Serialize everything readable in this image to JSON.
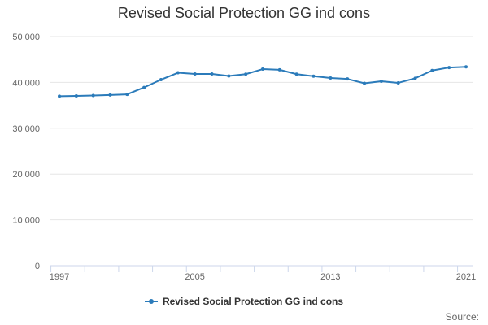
{
  "colors": {
    "series": "#2b7bba",
    "grid": "#e6e6e6",
    "axis": "#ccd6eb",
    "tick_text": "#666666",
    "title_text": "#333333"
  },
  "chart_data": {
    "type": "line",
    "title": "Revised Social Protection GG ind cons",
    "xlabel": "",
    "ylabel": "",
    "x": [
      1997,
      1998,
      1999,
      2000,
      2001,
      2002,
      2003,
      2004,
      2005,
      2006,
      2007,
      2008,
      2009,
      2010,
      2011,
      2012,
      2013,
      2014,
      2015,
      2016,
      2017,
      2018,
      2019,
      2020,
      2021
    ],
    "x_tick_labels": [
      "1997",
      "2005",
      "2013",
      "2021"
    ],
    "x_tick_values": [
      1997,
      2005,
      2013,
      2021
    ],
    "ylim": [
      0,
      50000
    ],
    "y_ticks": [
      0,
      10000,
      20000,
      30000,
      40000,
      50000
    ],
    "y_tick_labels": [
      "0",
      "10 000",
      "20 000",
      "30 000",
      "40 000",
      "50 000"
    ],
    "grid": true,
    "legend_position": "bottom-center",
    "series": [
      {
        "name": "Revised Social Protection GG ind cons",
        "values": [
          37000,
          37050,
          37150,
          37250,
          37400,
          38900,
          40600,
          42100,
          41850,
          41850,
          41400,
          41800,
          42900,
          42750,
          41800,
          41350,
          40950,
          40750,
          39800,
          40250,
          39900,
          40900,
          42600,
          43250,
          43400
        ]
      }
    ]
  },
  "footer": {
    "source_label": "Source:"
  }
}
